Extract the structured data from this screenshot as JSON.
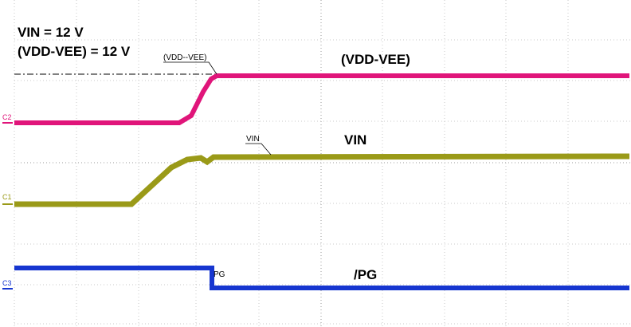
{
  "annotations": {
    "vin_setting": "VIN = 12 V",
    "bias_setting": "(VDD-VEE) = 12 V"
  },
  "traces": [
    {
      "channel": "C2",
      "label": "(VDD-VEE)",
      "marker": "(VDD--VEE)"
    },
    {
      "channel": "C1",
      "label": "VIN",
      "marker": "VIN"
    },
    {
      "channel": "C3",
      "label": "/PG",
      "marker": "PG"
    }
  ]
}
